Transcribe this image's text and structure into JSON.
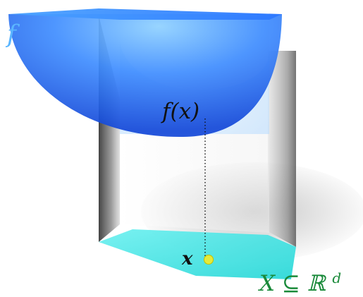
{
  "labels": {
    "function": "f",
    "function_value": "f(x)",
    "point": "x",
    "domain": "X ⊆ ℝ",
    "domain_superscript": "d"
  },
  "colors": {
    "bowl_main": "#1e66ff",
    "bowl_light": "#67b6ff",
    "base": "#34e6e6",
    "point": "#e4ea3a",
    "function_label": "#5bb6ff",
    "domain_label": "#1a8a3a",
    "text_dark": "#111111"
  }
}
